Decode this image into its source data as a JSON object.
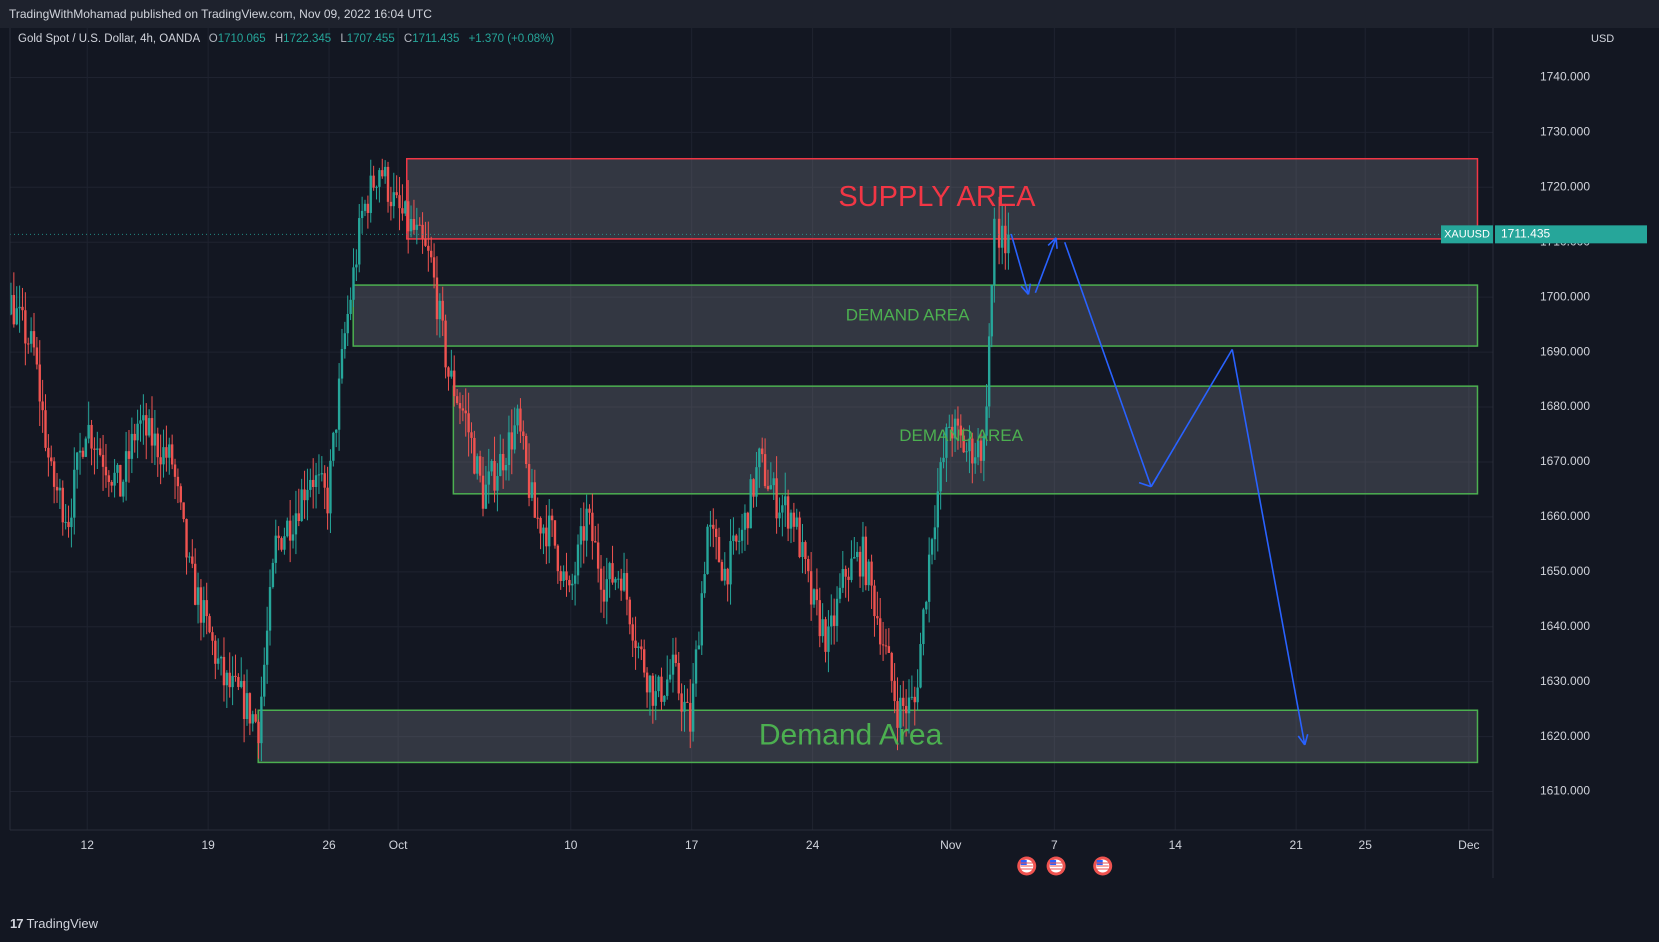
{
  "header": {
    "published": "TradingWithMohamad published on TradingView.com, Nov 09, 2022 16:04 UTC"
  },
  "legend": {
    "symbol": "Gold Spot / U.S. Dollar, 4h, OANDA",
    "open_label": "O",
    "open": "1710.065",
    "high_label": "H",
    "high": "1722.345",
    "low_label": "L",
    "low": "1707.455",
    "close_label": "C",
    "close": "1711.435",
    "change": "+1.370 (+0.08%)"
  },
  "currency": "USD",
  "footer": {
    "brand": "TradingView",
    "brand_icon": "tradingview-logo-icon"
  },
  "colors": {
    "background": "#131722",
    "up": "#26a69a",
    "down": "#ef5350",
    "supply": "#f23645",
    "demand": "#4caf50",
    "arrow": "#2962ff"
  },
  "chart_data": {
    "type": "candlestick",
    "symbol": "XAUUSD",
    "timeframe": "4h",
    "price_tag": {
      "label": "XAUUSD",
      "value": "1711.435",
      "price": 1711.435
    },
    "ylim": [
      1603,
      1749
    ],
    "y_ticks": [
      {
        "value": 1740,
        "label": "1740.000"
      },
      {
        "value": 1730,
        "label": "1730.000"
      },
      {
        "value": 1720,
        "label": "1720.000"
      },
      {
        "value": 1710,
        "label": "1710.000"
      },
      {
        "value": 1700,
        "label": "1700.000"
      },
      {
        "value": 1690,
        "label": "1690.000"
      },
      {
        "value": 1680,
        "label": "1680.000"
      },
      {
        "value": 1670,
        "label": "1670.000"
      },
      {
        "value": 1660,
        "label": "1660.000"
      },
      {
        "value": 1650,
        "label": "1650.000"
      },
      {
        "value": 1640,
        "label": "1640.000"
      },
      {
        "value": 1630,
        "label": "1630.000"
      },
      {
        "value": 1620,
        "label": "1620.000"
      },
      {
        "value": 1610,
        "label": "1610.000"
      }
    ],
    "x_ticks": [
      {
        "day": 12,
        "label": "12"
      },
      {
        "day": 19,
        "label": "19"
      },
      {
        "day": 26,
        "label": "26"
      },
      {
        "day": 30,
        "label": "Oct"
      },
      {
        "day": 40,
        "label": "10"
      },
      {
        "day": 47,
        "label": "17"
      },
      {
        "day": 54,
        "label": "24"
      },
      {
        "day": 62,
        "label": "Nov"
      },
      {
        "day": 68,
        "label": "7"
      },
      {
        "day": 75,
        "label": "14"
      },
      {
        "day": 82,
        "label": "21"
      },
      {
        "day": 86,
        "label": "25"
      },
      {
        "day": 92,
        "label": "Dec"
      }
    ],
    "zones": [
      {
        "label": "SUPPLY AREA",
        "kind": "supply",
        "x0": 30.5,
        "x1": 92.5,
        "y_top": 1725.2,
        "y_bot": 1710.6,
        "label_x": 61.2,
        "label_y": 1718,
        "label_size": "large"
      },
      {
        "label": "DEMAND AREA",
        "kind": "demand",
        "x0": 27.4,
        "x1": 92.5,
        "y_top": 1702.2,
        "y_bot": 1691.1,
        "label_x": 59.5,
        "label_y": 1696.6,
        "label_size": "medium"
      },
      {
        "label": "DEMAND AREA",
        "kind": "demand",
        "x0": 33.2,
        "x1": 92.5,
        "y_top": 1683.8,
        "y_bot": 1664.2,
        "label_x": 62.6,
        "label_y": 1674.6,
        "label_size": "medium"
      },
      {
        "label": "Demand Area",
        "kind": "demand",
        "x0": 21.9,
        "x1": 92.5,
        "y_top": 1624.8,
        "y_bot": 1615.3,
        "label_x": 56.2,
        "label_y": 1620,
        "label_size": "xlarge"
      }
    ],
    "forecast_path": [
      {
        "day": 67.6,
        "price": 1711.5
      },
      {
        "day": 68.5,
        "price": 1700.2
      },
      {
        "day": 69.6,
        "price": 1710.9
      },
      {
        "day": 73.0,
        "price": 1665.5
      },
      {
        "day": 76.1,
        "price": 1690.6
      },
      {
        "day": 80.1,
        "price": 1618.5
      }
    ],
    "forecast_segments": [
      {
        "day": 65.5,
        "price": 1711.5,
        "to_day": 66.5,
        "to_price": 1700.5
      },
      {
        "day": 66.9,
        "price": 1700.8,
        "to_day": 68.1,
        "to_price": 1710.8
      },
      {
        "day": 68.6,
        "price": 1710.0,
        "to_day": 73.6,
        "to_price": 1665.5
      },
      {
        "day": 73.6,
        "price": 1665.5,
        "to_day": 78.3,
        "to_price": 1690.5
      },
      {
        "day": 78.3,
        "price": 1690.5,
        "to_day": 82.5,
        "to_price": 1618.5
      }
    ],
    "event_markers": [
      {
        "day": 66.4
      },
      {
        "day": 68.1
      },
      {
        "day": 70.8
      }
    ],
    "anchor_points": [
      {
        "day": 0,
        "price": 1695
      },
      {
        "day": 2,
        "price": 1712
      },
      {
        "day": 4,
        "price": 1728
      },
      {
        "day": 5,
        "price": 1733
      },
      {
        "day": 6.5,
        "price": 1716
      },
      {
        "day": 7.5,
        "price": 1700
      },
      {
        "day": 9,
        "price": 1690
      },
      {
        "day": 10,
        "price": 1667
      },
      {
        "day": 11,
        "price": 1660
      },
      {
        "day": 12,
        "price": 1677
      },
      {
        "day": 14,
        "price": 1665
      },
      {
        "day": 15,
        "price": 1677
      },
      {
        "day": 17,
        "price": 1670
      },
      {
        "day": 18,
        "price": 1650
      },
      {
        "day": 19,
        "price": 1640
      },
      {
        "day": 20,
        "price": 1630
      },
      {
        "day": 21,
        "price": 1627
      },
      {
        "day": 22,
        "price": 1622
      },
      {
        "day": 23,
        "price": 1655
      },
      {
        "day": 24,
        "price": 1660
      },
      {
        "day": 25,
        "price": 1668
      },
      {
        "day": 26,
        "price": 1663
      },
      {
        "day": 27,
        "price": 1693
      },
      {
        "day": 28,
        "price": 1715
      },
      {
        "day": 29,
        "price": 1724
      },
      {
        "day": 30,
        "price": 1716
      },
      {
        "day": 31,
        "price": 1712
      },
      {
        "day": 32,
        "price": 1706
      },
      {
        "day": 33,
        "price": 1686
      },
      {
        "day": 34,
        "price": 1678
      },
      {
        "day": 35,
        "price": 1664
      },
      {
        "day": 36,
        "price": 1670
      },
      {
        "day": 37,
        "price": 1677
      },
      {
        "day": 38,
        "price": 1660
      },
      {
        "day": 39,
        "price": 1657
      },
      {
        "day": 40,
        "price": 1645
      },
      {
        "day": 41,
        "price": 1660
      },
      {
        "day": 42,
        "price": 1648
      },
      {
        "day": 43,
        "price": 1650
      },
      {
        "day": 44,
        "price": 1636
      },
      {
        "day": 45,
        "price": 1627
      },
      {
        "day": 46,
        "price": 1632
      },
      {
        "day": 47,
        "price": 1622
      },
      {
        "day": 48,
        "price": 1658
      },
      {
        "day": 49,
        "price": 1650
      },
      {
        "day": 50,
        "price": 1657
      },
      {
        "day": 51,
        "price": 1670
      },
      {
        "day": 52,
        "price": 1663
      },
      {
        "day": 53,
        "price": 1660
      },
      {
        "day": 54,
        "price": 1645
      },
      {
        "day": 55,
        "price": 1637
      },
      {
        "day": 56,
        "price": 1650
      },
      {
        "day": 57,
        "price": 1653
      },
      {
        "day": 58,
        "price": 1640
      },
      {
        "day": 59,
        "price": 1625
      },
      {
        "day": 60,
        "price": 1626
      },
      {
        "day": 61,
        "price": 1658
      },
      {
        "day": 62,
        "price": 1677
      },
      {
        "day": 63,
        "price": 1672
      },
      {
        "day": 64,
        "price": 1673
      },
      {
        "day": 64.6,
        "price": 1711.4
      }
    ]
  }
}
